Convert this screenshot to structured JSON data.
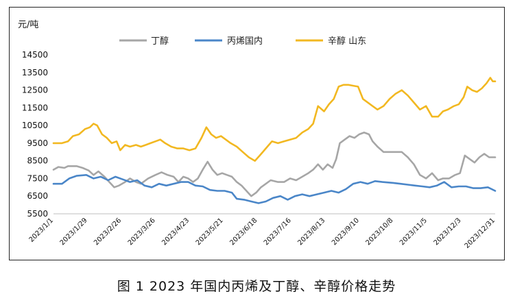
{
  "caption": "图 1  2023 年国内丙烯及丁醇、辛醇价格走势",
  "chart_data": {
    "type": "line",
    "ylabel": "元/吨",
    "ylim": [
      5500,
      14500
    ],
    "yticks": [
      5500,
      6500,
      7500,
      8500,
      9500,
      10500,
      11500,
      12500,
      13500,
      14500
    ],
    "grid": false,
    "legend_position": "top",
    "x_tick_labels": [
      "2023/1/1",
      "2023/1/29",
      "2023/2/26",
      "2023/3/26",
      "2023/4/23",
      "2023/5/21",
      "2023/6/18",
      "2023/7/16",
      "2023/8/13",
      "2023/9/10",
      "2023/10/8",
      "2023/11/5",
      "2023/12/3",
      "2023/12/31"
    ],
    "x_range": [
      "2023/1/1",
      "2023/12/31"
    ],
    "series": [
      {
        "name": "丁醇",
        "color": "#a6a6a6",
        "points": [
          [
            "2023/1/1",
            8000
          ],
          [
            "2023/1/5",
            8150
          ],
          [
            "2023/1/10",
            8100
          ],
          [
            "2023/1/13",
            8200
          ],
          [
            "2023/1/20",
            8200
          ],
          [
            "2023/1/25",
            8100
          ],
          [
            "2023/1/30",
            7950
          ],
          [
            "2023/2/3",
            7700
          ],
          [
            "2023/2/7",
            7900
          ],
          [
            "2023/2/12",
            7600
          ],
          [
            "2023/2/16",
            7300
          ],
          [
            "2023/2/20",
            7000
          ],
          [
            "2023/2/24",
            7100
          ],
          [
            "2023/3/1",
            7300
          ],
          [
            "2023/3/5",
            7500
          ],
          [
            "2023/3/10",
            7300
          ],
          [
            "2023/3/14",
            7200
          ],
          [
            "2023/3/20",
            7500
          ],
          [
            "2023/3/26",
            7700
          ],
          [
            "2023/3/31",
            7850
          ],
          [
            "2023/4/5",
            7700
          ],
          [
            "2023/4/10",
            7600
          ],
          [
            "2023/4/14",
            7300
          ],
          [
            "2023/4/18",
            7600
          ],
          [
            "2023/4/22",
            7500
          ],
          [
            "2023/4/26",
            7300
          ],
          [
            "2023/4/30",
            7500
          ],
          [
            "2023/5/4",
            8000
          ],
          [
            "2023/5/8",
            8450
          ],
          [
            "2023/5/12",
            8000
          ],
          [
            "2023/5/16",
            7700
          ],
          [
            "2023/5/20",
            7800
          ],
          [
            "2023/5/24",
            7700
          ],
          [
            "2023/5/28",
            7600
          ],
          [
            "2023/6/1",
            7300
          ],
          [
            "2023/6/5",
            7100
          ],
          [
            "2023/6/9",
            6800
          ],
          [
            "2023/6/13",
            6500
          ],
          [
            "2023/6/17",
            6700
          ],
          [
            "2023/6/21",
            7000
          ],
          [
            "2023/6/25",
            7200
          ],
          [
            "2023/6/29",
            7400
          ],
          [
            "2023/7/5",
            7300
          ],
          [
            "2023/7/10",
            7300
          ],
          [
            "2023/7/15",
            7500
          ],
          [
            "2023/7/20",
            7400
          ],
          [
            "2023/7/25",
            7600
          ],
          [
            "2023/7/30",
            7800
          ],
          [
            "2023/8/3",
            8000
          ],
          [
            "2023/8/7",
            8300
          ],
          [
            "2023/8/11",
            8000
          ],
          [
            "2023/8/15",
            8300
          ],
          [
            "2023/8/19",
            8100
          ],
          [
            "2023/8/22",
            8600
          ],
          [
            "2023/8/25",
            9500
          ],
          [
            "2023/8/29",
            9700
          ],
          [
            "2023/9/2",
            9900
          ],
          [
            "2023/9/6",
            9800
          ],
          [
            "2023/9/10",
            10000
          ],
          [
            "2023/9/14",
            10100
          ],
          [
            "2023/9/18",
            10000
          ],
          [
            "2023/9/21",
            9600
          ],
          [
            "2023/9/25",
            9300
          ],
          [
            "2023/9/30",
            9000
          ],
          [
            "2023/10/8",
            9000
          ],
          [
            "2023/10/15",
            9000
          ],
          [
            "2023/10/20",
            8700
          ],
          [
            "2023/10/25",
            8300
          ],
          [
            "2023/10/30",
            7700
          ],
          [
            "2023/11/4",
            7500
          ],
          [
            "2023/11/9",
            7800
          ],
          [
            "2023/11/14",
            7400
          ],
          [
            "2023/11/18",
            7500
          ],
          [
            "2023/11/23",
            7500
          ],
          [
            "2023/11/28",
            7700
          ],
          [
            "2023/12/2",
            7800
          ],
          [
            "2023/12/6",
            8800
          ],
          [
            "2023/12/10",
            8600
          ],
          [
            "2023/12/14",
            8400
          ],
          [
            "2023/12/18",
            8700
          ],
          [
            "2023/12/22",
            8900
          ],
          [
            "2023/12/26",
            8700
          ],
          [
            "2023/12/31",
            8700
          ]
        ]
      },
      {
        "name": "丙烯国内",
        "color": "#4a86c8",
        "points": [
          [
            "2023/1/1",
            7200
          ],
          [
            "2023/1/8",
            7200
          ],
          [
            "2023/1/14",
            7500
          ],
          [
            "2023/1/20",
            7650
          ],
          [
            "2023/1/28",
            7700
          ],
          [
            "2023/2/3",
            7500
          ],
          [
            "2023/2/9",
            7600
          ],
          [
            "2023/2/15",
            7400
          ],
          [
            "2023/2/21",
            7600
          ],
          [
            "2023/2/27",
            7450
          ],
          [
            "2023/3/5",
            7300
          ],
          [
            "2023/3/11",
            7400
          ],
          [
            "2023/3/17",
            7100
          ],
          [
            "2023/3/23",
            7000
          ],
          [
            "2023/3/29",
            7200
          ],
          [
            "2023/4/4",
            7100
          ],
          [
            "2023/4/10",
            7200
          ],
          [
            "2023/4/16",
            7300
          ],
          [
            "2023/4/22",
            7300
          ],
          [
            "2023/4/28",
            7100
          ],
          [
            "2023/5/4",
            7050
          ],
          [
            "2023/5/10",
            6850
          ],
          [
            "2023/5/16",
            6800
          ],
          [
            "2023/5/22",
            6800
          ],
          [
            "2023/5/28",
            6700
          ],
          [
            "2023/6/1",
            6350
          ],
          [
            "2023/6/7",
            6300
          ],
          [
            "2023/6/13",
            6200
          ],
          [
            "2023/6/19",
            6100
          ],
          [
            "2023/6/25",
            6200
          ],
          [
            "2023/7/1",
            6400
          ],
          [
            "2023/7/7",
            6500
          ],
          [
            "2023/7/13",
            6300
          ],
          [
            "2023/7/19",
            6500
          ],
          [
            "2023/7/25",
            6600
          ],
          [
            "2023/7/31",
            6500
          ],
          [
            "2023/8/6",
            6600
          ],
          [
            "2023/8/12",
            6700
          ],
          [
            "2023/8/18",
            6800
          ],
          [
            "2023/8/24",
            6700
          ],
          [
            "2023/8/30",
            6900
          ],
          [
            "2023/9/5",
            7200
          ],
          [
            "2023/9/11",
            7300
          ],
          [
            "2023/9/17",
            7200
          ],
          [
            "2023/9/23",
            7350
          ],
          [
            "2023/9/29",
            7300
          ],
          [
            "2023/10/8",
            7250
          ],
          [
            "2023/10/14",
            7200
          ],
          [
            "2023/10/20",
            7150
          ],
          [
            "2023/10/26",
            7100
          ],
          [
            "2023/11/1",
            7050
          ],
          [
            "2023/11/7",
            7000
          ],
          [
            "2023/11/13",
            7100
          ],
          [
            "2023/11/19",
            7300
          ],
          [
            "2023/11/25",
            7000
          ],
          [
            "2023/12/1",
            7050
          ],
          [
            "2023/12/7",
            7050
          ],
          [
            "2023/12/13",
            6950
          ],
          [
            "2023/12/19",
            6950
          ],
          [
            "2023/12/25",
            7000
          ],
          [
            "2023/12/31",
            6800
          ]
        ]
      },
      {
        "name": "辛醇 山东",
        "color": "#f2b821",
        "points": [
          [
            "2023/1/1",
            9500
          ],
          [
            "2023/1/8",
            9500
          ],
          [
            "2023/1/13",
            9600
          ],
          [
            "2023/1/17",
            9900
          ],
          [
            "2023/1/22",
            10000
          ],
          [
            "2023/1/27",
            10300
          ],
          [
            "2023/1/31",
            10400
          ],
          [
            "2023/2/3",
            10600
          ],
          [
            "2023/2/6",
            10500
          ],
          [
            "2023/2/10",
            10000
          ],
          [
            "2023/2/14",
            9800
          ],
          [
            "2023/2/18",
            9500
          ],
          [
            "2023/2/22",
            9600
          ],
          [
            "2023/2/25",
            9100
          ],
          [
            "2023/3/1",
            9400
          ],
          [
            "2023/3/5",
            9300
          ],
          [
            "2023/3/10",
            9400
          ],
          [
            "2023/3/14",
            9300
          ],
          [
            "2023/3/18",
            9400
          ],
          [
            "2023/3/22",
            9500
          ],
          [
            "2023/3/26",
            9600
          ],
          [
            "2023/3/30",
            9700
          ],
          [
            "2023/4/3",
            9500
          ],
          [
            "2023/4/8",
            9300
          ],
          [
            "2023/4/13",
            9200
          ],
          [
            "2023/4/18",
            9200
          ],
          [
            "2023/4/23",
            9100
          ],
          [
            "2023/4/28",
            9200
          ],
          [
            "2023/5/3",
            9800
          ],
          [
            "2023/5/7",
            10400
          ],
          [
            "2023/5/11",
            10000
          ],
          [
            "2023/5/15",
            9800
          ],
          [
            "2023/5/19",
            9900
          ],
          [
            "2023/5/23",
            9700
          ],
          [
            "2023/5/27",
            9500
          ],
          [
            "2023/6/1",
            9300
          ],
          [
            "2023/6/6",
            9000
          ],
          [
            "2023/6/11",
            8700
          ],
          [
            "2023/6/16",
            8500
          ],
          [
            "2023/6/20",
            8800
          ],
          [
            "2023/6/25",
            9200
          ],
          [
            "2023/6/30",
            9600
          ],
          [
            "2023/7/5",
            9500
          ],
          [
            "2023/7/10",
            9600
          ],
          [
            "2023/7/15",
            9700
          ],
          [
            "2023/7/20",
            9800
          ],
          [
            "2023/7/25",
            10100
          ],
          [
            "2023/7/30",
            10300
          ],
          [
            "2023/8/3",
            10600
          ],
          [
            "2023/8/7",
            11600
          ],
          [
            "2023/8/12",
            11300
          ],
          [
            "2023/8/16",
            11700
          ],
          [
            "2023/8/20",
            12000
          ],
          [
            "2023/8/24",
            12700
          ],
          [
            "2023/8/28",
            12800
          ],
          [
            "2023/9/1",
            12800
          ],
          [
            "2023/9/5",
            12750
          ],
          [
            "2023/9/9",
            12700
          ],
          [
            "2023/9/13",
            12000
          ],
          [
            "2023/9/17",
            11800
          ],
          [
            "2023/9/21",
            11600
          ],
          [
            "2023/9/25",
            11400
          ],
          [
            "2023/9/30",
            11600
          ],
          [
            "2023/10/5",
            12000
          ],
          [
            "2023/10/10",
            12300
          ],
          [
            "2023/10/15",
            12500
          ],
          [
            "2023/10/20",
            12200
          ],
          [
            "2023/10/25",
            11800
          ],
          [
            "2023/10/30",
            11400
          ],
          [
            "2023/11/4",
            11600
          ],
          [
            "2023/11/9",
            11000
          ],
          [
            "2023/11/14",
            11000
          ],
          [
            "2023/11/18",
            11300
          ],
          [
            "2023/11/22",
            11400
          ],
          [
            "2023/11/27",
            11600
          ],
          [
            "2023/12/1",
            11700
          ],
          [
            "2023/12/5",
            12100
          ],
          [
            "2023/12/8",
            12700
          ],
          [
            "2023/12/12",
            12500
          ],
          [
            "2023/12/16",
            12400
          ],
          [
            "2023/12/20",
            12600
          ],
          [
            "2023/12/24",
            12900
          ],
          [
            "2023/12/27",
            13200
          ],
          [
            "2023/12/29",
            13000
          ],
          [
            "2023/12/31",
            13000
          ]
        ]
      }
    ]
  }
}
